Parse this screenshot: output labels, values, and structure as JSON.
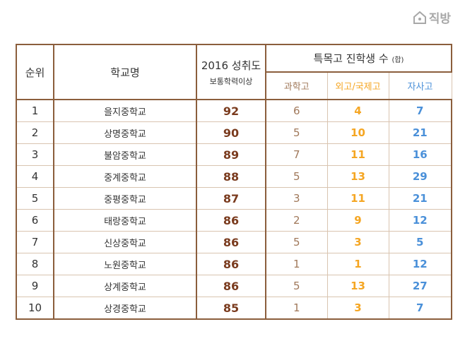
{
  "logo": "직방",
  "table": {
    "headers": {
      "rank": "순위",
      "school": "학교명",
      "score": "2016 성취도",
      "score_sub": "보통학력이상",
      "group": "특목고 진학생 수",
      "group_unit": "(합)",
      "sub": [
        "과학고",
        "외고/국제고",
        "자사고"
      ]
    },
    "rows": [
      [
        1,
        "을지중학교",
        92,
        6,
        4,
        7
      ],
      [
        2,
        "상명중학교",
        90,
        5,
        10,
        21
      ],
      [
        3,
        "불암중학교",
        89,
        7,
        11,
        16
      ],
      [
        4,
        "중계중학교",
        88,
        5,
        13,
        29
      ],
      [
        5,
        "중평중학교",
        87,
        3,
        11,
        21
      ],
      [
        6,
        "태랑중학교",
        86,
        2,
        9,
        12
      ],
      [
        7,
        "신상중학교",
        86,
        5,
        3,
        5
      ],
      [
        8,
        "노원중학교",
        86,
        1,
        1,
        12
      ],
      [
        9,
        "상계중학교",
        86,
        5,
        13,
        27
      ],
      [
        10,
        "상경중학교",
        85,
        1,
        3,
        7
      ]
    ]
  }
}
